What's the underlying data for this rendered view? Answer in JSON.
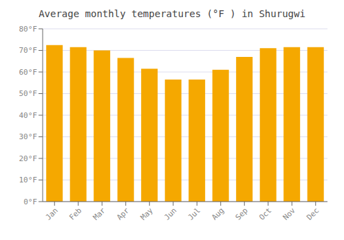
{
  "chart_data": {
    "type": "bar",
    "title": "Average monthly temperatures (°F ) in Shurugwi",
    "categories": [
      "Jan",
      "Feb",
      "Mar",
      "Apr",
      "May",
      "Jun",
      "Jul",
      "Aug",
      "Sep",
      "Oct",
      "Nov",
      "Dec"
    ],
    "values": [
      72.5,
      71.5,
      70.0,
      66.5,
      61.5,
      56.5,
      56.5,
      61.0,
      67.0,
      71.0,
      71.5,
      71.5
    ],
    "color": "#F5A800",
    "ylim": [
      0,
      80
    ],
    "yticks": [
      {
        "value": 0,
        "label": "0°F"
      },
      {
        "value": 10,
        "label": "10°F"
      },
      {
        "value": 20,
        "label": "20°F"
      },
      {
        "value": 30,
        "label": "30°F"
      },
      {
        "value": 40,
        "label": "40°F"
      },
      {
        "value": 50,
        "label": "50°F"
      },
      {
        "value": 60,
        "label": "60°F"
      },
      {
        "value": 70,
        "label": "70°F"
      },
      {
        "value": 80,
        "label": "80°F"
      }
    ],
    "grid": true
  }
}
